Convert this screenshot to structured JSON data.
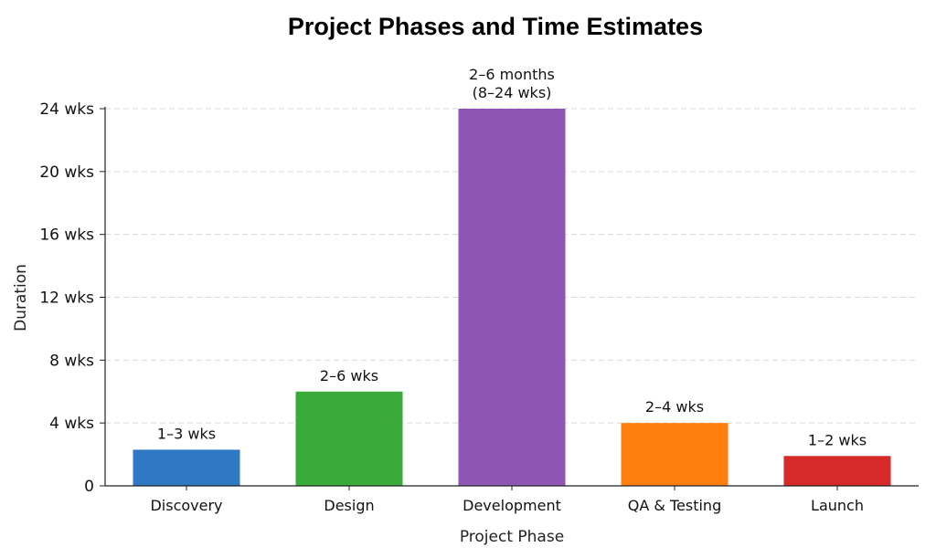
{
  "chart_data": {
    "type": "bar",
    "title": "Project Phases and Time Estimates",
    "xlabel": "Project Phase",
    "ylabel": "Duration",
    "categories": [
      "Discovery",
      "Design",
      "Development",
      "QA & Testing",
      "Launch"
    ],
    "values": [
      2.3,
      6,
      24,
      4,
      1.9
    ],
    "value_labels": [
      [
        "1–3 wks"
      ],
      [
        "2–6 wks"
      ],
      [
        "2–6 months",
        "(8–24 wks)"
      ],
      [
        "2–4 wks"
      ],
      [
        "1–2 wks"
      ]
    ],
    "colors": [
      "#2f78c4",
      "#3aaa3a",
      "#8e55b5",
      "#ff7f0e",
      "#d62a28"
    ],
    "ylim": [
      0,
      24
    ],
    "yticks": [
      0,
      4,
      8,
      12,
      16,
      20,
      24
    ],
    "ytick_labels": [
      "0",
      "4 wks",
      "8 wks",
      "12 wks",
      "16 wks",
      "20 wks",
      "24 wks"
    ],
    "grid": true,
    "grid_style": "dashed",
    "legend": "none"
  }
}
